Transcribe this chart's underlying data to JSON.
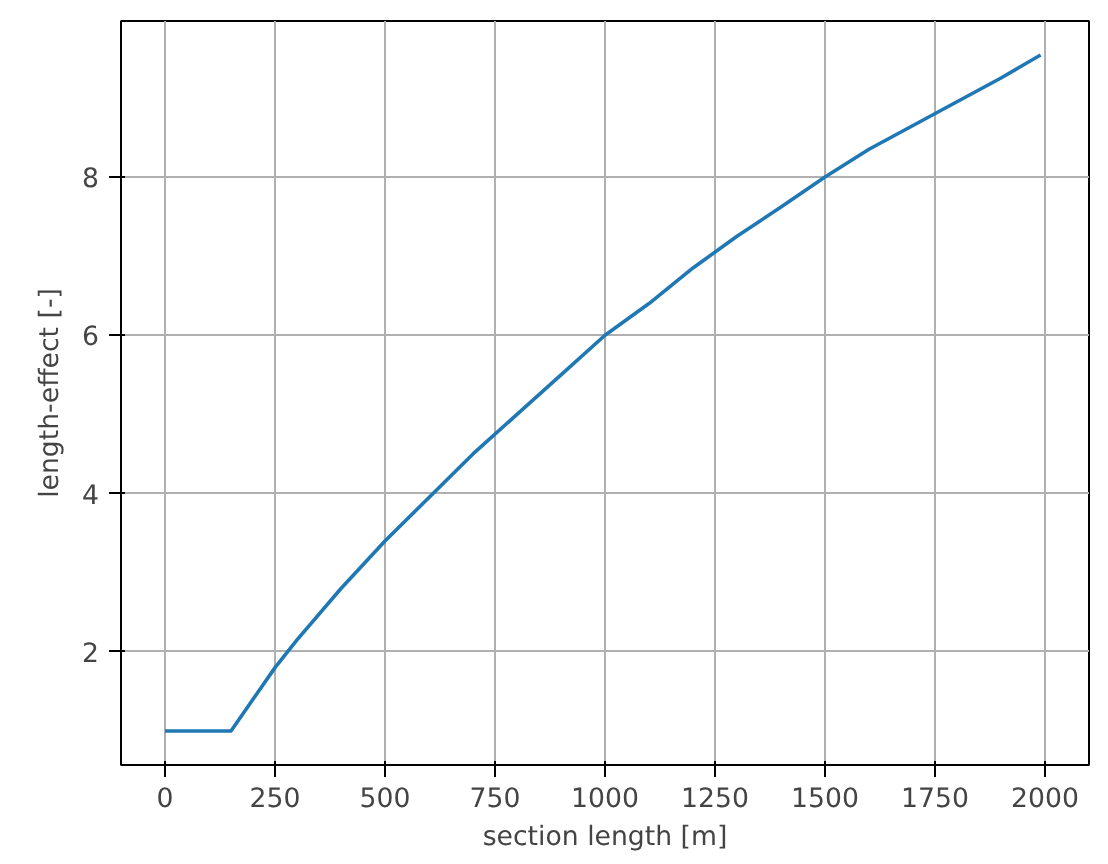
{
  "chart_data": {
    "type": "line",
    "xlabel": "section length [m]",
    "ylabel": "length-effect [-]",
    "x": [
      0,
      150,
      200,
      250,
      300,
      400,
      500,
      600,
      700,
      800,
      900,
      1000,
      1100,
      1200,
      1300,
      1400,
      1500,
      1600,
      1700,
      1800,
      1900,
      1990
    ],
    "series": [
      {
        "color": "#1f77b4",
        "values": [
          1.0,
          1.0,
          1.4,
          1.8,
          2.15,
          2.8,
          3.4,
          3.95,
          4.5,
          5.0,
          5.5,
          6.0,
          6.4,
          6.85,
          7.25,
          7.62,
          8.0,
          8.35,
          8.65,
          8.95,
          9.25,
          9.54
        ]
      }
    ],
    "xlim": [
      -100,
      2100
    ],
    "ylim": [
      0.57,
      9.97
    ],
    "xticks": [
      0,
      250,
      500,
      750,
      1000,
      1250,
      1500,
      1750,
      2000
    ],
    "yticks": [
      2,
      4,
      6,
      8
    ],
    "grid": true,
    "marker": "none",
    "line_style": "solid"
  }
}
